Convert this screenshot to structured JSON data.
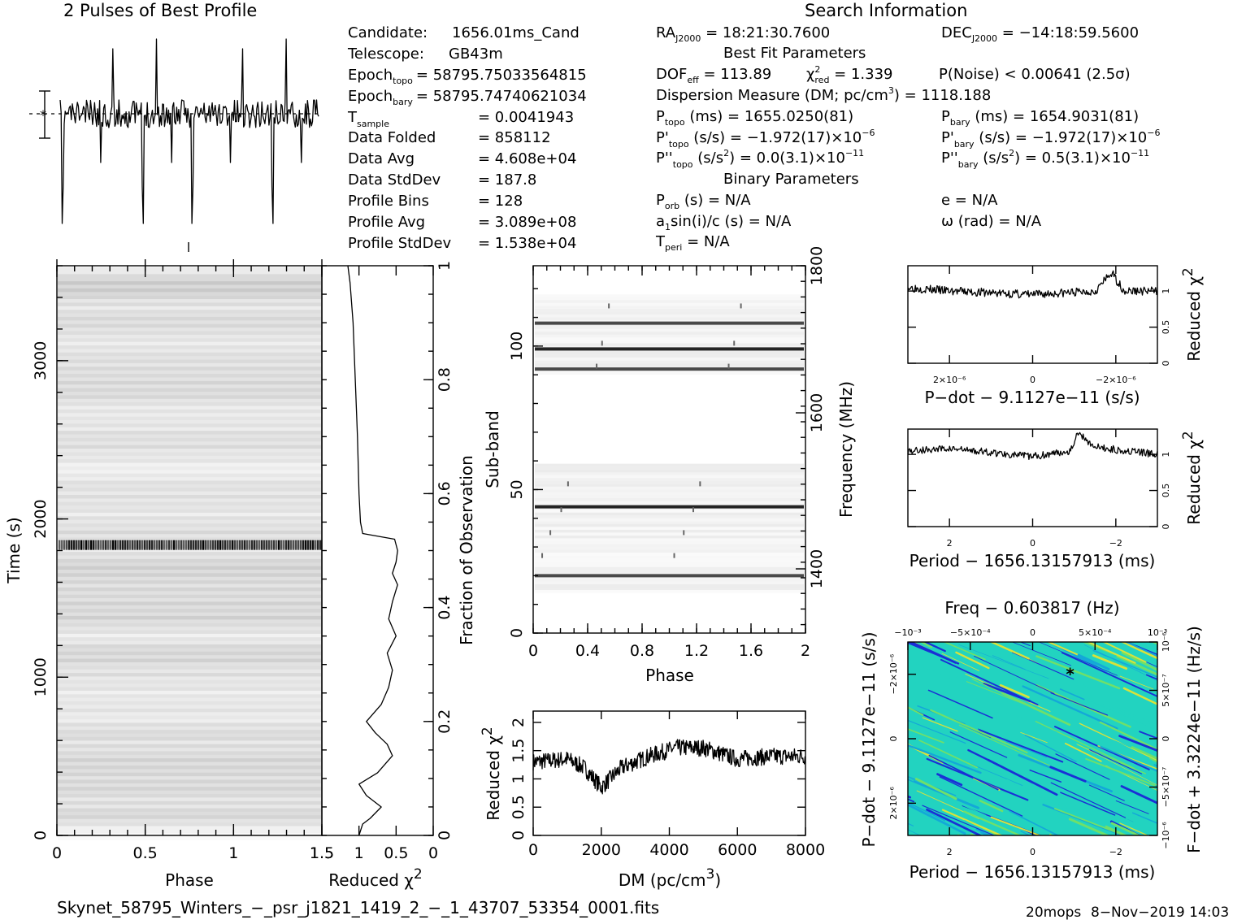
{
  "title_profile": "2 Pulses of Best Profile",
  "title_search": "Search Information",
  "header": {
    "candidate": {
      "label": "Candidate:",
      "value": "1656.01ms_Cand"
    },
    "telescope": {
      "label": "Telescope:",
      "value": "GB43m"
    },
    "epoch_topo": {
      "label": "Epoch",
      "sub": "topo",
      "value": "= 58795.75033564815"
    },
    "epoch_bary": {
      "label": "Epoch",
      "sub": "bary",
      "value": "= 58795.74740621034"
    },
    "tsample": {
      "label": "T",
      "sub": "sample",
      "value": "=   0.0041943"
    },
    "data_folded": {
      "label": "Data Folded",
      "value": "=   858112"
    },
    "data_avg": {
      "label": "Data Avg",
      "value": "=   4.608e+04"
    },
    "data_stddev": {
      "label": "Data StdDev",
      "value": "=   187.8"
    },
    "profile_bins": {
      "label": "Profile Bins",
      "value": "=   128"
    },
    "profile_avg": {
      "label": "Profile Avg",
      "value": "=   3.089e+08"
    },
    "profile_stddev": {
      "label": "Profile StdDev",
      "value": "=   1.538e+04"
    }
  },
  "search": {
    "ra": {
      "label": "RA",
      "sub": "J2000",
      "value": " = 18:21:30.7600"
    },
    "dec": {
      "label": "DEC",
      "sub": "J2000",
      "value": " = −14:18:59.5600"
    },
    "best_fit_title": "Best Fit Parameters",
    "dof": {
      "label": "DOF",
      "sub": "eff",
      "value": " = 113.89"
    },
    "chi2": {
      "sym": "χ",
      "sup": "2",
      "sub": "red",
      "value": " = 1.339"
    },
    "pnoise": "P(Noise) < 0.00641   (2.5σ)",
    "dm": {
      "text": "Dispersion Measure (DM; pc/cm",
      "sup": "3",
      "value": ") = 1118.188"
    },
    "ptopo": {
      "label": "P",
      "sub": "topo",
      "value": " (ms)  =   1655.0250(81)"
    },
    "pbary": {
      "label": "P",
      "sub": "bary",
      "value": " (ms)  =   1654.9031(81)"
    },
    "pdtopo": {
      "label": "P'",
      "sub": "topo",
      "value": " (s/s) = −1.972(17)×10",
      "exp": "−6"
    },
    "pdbary": {
      "label": "P'",
      "sub": "bary",
      "value": " (s/s) = −1.972(17)×10",
      "exp": "−6"
    },
    "pddtopo": {
      "label": "P''",
      "sub": "topo",
      "value": " (s/s",
      "sup": "2",
      "value2": ") = 0.0(3.1)×10",
      "exp": "−11"
    },
    "pddbary": {
      "label": "P''",
      "sub": "bary",
      "value": " (s/s",
      "sup": "2",
      "value2": ") =  0.5(3.1)×10",
      "exp": "−11"
    },
    "binary_title": "Binary Parameters",
    "porb": {
      "label": "P",
      "sub": "orb",
      "value": " (s) = N/A"
    },
    "ecc": "e = N/A",
    "asini": {
      "label": "a",
      "sub": "1",
      "value": "sin(i)/c (s) = N/A"
    },
    "omega": "ω (rad) = N/A",
    "tperi": {
      "label": "T",
      "sub": "peri",
      "value": " = N/A"
    }
  },
  "footer": {
    "filename": "Skynet_58795_Winters_−_psr_j1821_1419_2_−_1_43707_53354_0001.fits",
    "program": "20mops",
    "date": "8−Nov−2019 14:03"
  },
  "chart_data": [
    {
      "id": "profile",
      "type": "line",
      "title": "2 Pulses of Best Profile",
      "x_range": [
        0,
        2
      ],
      "seed": 11
    },
    {
      "id": "time_phase",
      "type": "heatmap",
      "xlabel": "Phase",
      "ylabel": "Time (s)",
      "xlim": [
        0,
        1.5
      ],
      "ylim": [
        0,
        3600
      ],
      "x_ticks": [
        "0",
        "0.5",
        "1",
        "1.5"
      ],
      "y_ticks": [
        "0",
        "1000",
        "2000",
        "3000"
      ],
      "dark_band_time": 1835,
      "colormap": "grayscale"
    },
    {
      "id": "time_chi2",
      "type": "line",
      "xlabel": "Reduced χ",
      "xlabel_sup": "2",
      "ylabel": "Fraction of Observation",
      "xlim": [
        1.5,
        0
      ],
      "ylim": [
        0,
        1
      ],
      "x_ticks": [
        "1.5",
        "1",
        "0.5",
        "0"
      ],
      "y_ticks": [
        "0",
        "0.2",
        "0.4",
        "0.6",
        "0.8",
        "1"
      ],
      "points": [
        [
          1.0,
          0.0
        ],
        [
          0.95,
          0.02
        ],
        [
          0.85,
          0.03
        ],
        [
          0.7,
          0.05
        ],
        [
          0.9,
          0.07
        ],
        [
          1.0,
          0.09
        ],
        [
          0.75,
          0.11
        ],
        [
          0.55,
          0.14
        ],
        [
          0.62,
          0.16
        ],
        [
          0.78,
          0.18
        ],
        [
          0.9,
          0.2
        ],
        [
          0.7,
          0.23
        ],
        [
          0.6,
          0.26
        ],
        [
          0.55,
          0.29
        ],
        [
          0.62,
          0.32
        ],
        [
          0.5,
          0.35
        ],
        [
          0.6,
          0.38
        ],
        [
          0.55,
          0.41
        ],
        [
          0.48,
          0.44
        ],
        [
          0.55,
          0.46
        ],
        [
          0.5,
          0.48
        ],
        [
          0.48,
          0.5
        ],
        [
          0.52,
          0.52
        ],
        [
          0.95,
          0.53
        ],
        [
          0.98,
          0.55
        ],
        [
          1.0,
          0.6
        ],
        [
          1.02,
          0.7
        ],
        [
          1.05,
          0.8
        ],
        [
          1.08,
          0.9
        ],
        [
          1.12,
          0.97
        ],
        [
          1.15,
          1.0
        ]
      ]
    },
    {
      "id": "subband_phase",
      "type": "heatmap",
      "xlabel": "Phase",
      "ylabel": "Sub-band",
      "ylabel_right": "Frequency (MHz)",
      "xlim": [
        0,
        2
      ],
      "ylim": [
        0,
        128
      ],
      "x_ticks": [
        "0",
        "0.4",
        "0.8",
        "1.2",
        "1.6",
        "2"
      ],
      "y_ticks": [
        "0",
        "50",
        "100"
      ],
      "freq_ticks": [
        "1400",
        "1600",
        "1800"
      ],
      "dark_bands": [
        20,
        44,
        92,
        99,
        108
      ],
      "colormap": "grayscale"
    },
    {
      "id": "dm_chi2",
      "type": "line",
      "xlabel": "DM (pc/cm",
      "xlabel_sup": "3",
      "xlabel_end": ")",
      "ylabel": "Reduced χ",
      "ylabel_sup": "2",
      "xlim": [
        0,
        8000
      ],
      "ylim": [
        0,
        2.2
      ],
      "x_ticks": [
        "0",
        "2000",
        "4000",
        "6000",
        "8000"
      ],
      "y_ticks": [
        "0",
        "0.5",
        "1",
        "1.5",
        "2"
      ],
      "trend": [
        [
          0,
          1.3
        ],
        [
          1000,
          1.35
        ],
        [
          1500,
          1.2
        ],
        [
          2000,
          0.85
        ],
        [
          2600,
          1.2
        ],
        [
          3400,
          1.4
        ],
        [
          4200,
          1.55
        ],
        [
          5000,
          1.55
        ],
        [
          6000,
          1.35
        ],
        [
          7000,
          1.4
        ],
        [
          8000,
          1.4
        ]
      ],
      "noise": 0.15,
      "seed": 7
    },
    {
      "id": "pdot_chi2",
      "type": "line",
      "xlabel": "P−dot − 9.1127e−11 (s/s)",
      "ylabel": "Reduced χ",
      "ylabel_sup": "2",
      "xlim": [
        3.0,
        -3.0
      ],
      "ylim": [
        0,
        1.35
      ],
      "x_ticks": [
        "2×10⁻⁶",
        "0",
        "−2×10⁻⁶"
      ],
      "y_ticks": [
        "0",
        "0.5",
        "1"
      ],
      "trend": [
        [
          3,
          1.05
        ],
        [
          2,
          1.0
        ],
        [
          0,
          0.95
        ],
        [
          -1.5,
          1.0
        ],
        [
          -1.9,
          1.25
        ],
        [
          -2.2,
          1.0
        ],
        [
          -3,
          1.0
        ]
      ],
      "noise": 0.06,
      "seed": 3
    },
    {
      "id": "period_chi2",
      "type": "line",
      "xlabel": "Period − 1656.13157913 (ms)",
      "ylabel": "Reduced χ",
      "ylabel_sup": "2",
      "xlim": [
        3.0,
        -3.0
      ],
      "ylim": [
        0,
        1.35
      ],
      "x_ticks": [
        "2",
        "0",
        "−2"
      ],
      "y_ticks": [
        "0",
        "0.5",
        "1"
      ],
      "trend": [
        [
          3,
          1.05
        ],
        [
          2,
          1.08
        ],
        [
          0,
          0.97
        ],
        [
          -0.9,
          1.05
        ],
        [
          -1.1,
          1.3
        ],
        [
          -1.5,
          1.1
        ],
        [
          -3,
          1.0
        ]
      ],
      "noise": 0.05,
      "seed": 5
    },
    {
      "id": "ppdot_plane",
      "type": "heatmap",
      "title": "Freq − 0.603817 (Hz)",
      "xlabel": "Period − 1656.13157913 (ms)",
      "ylabel": "P−dot − 9.1127e−11 (s/s)",
      "ylabel_right": "F−dot + 3.3224e−11 (Hz/s)",
      "x_ticks": [
        "2",
        "0",
        "−2"
      ],
      "top_ticks": [
        "−10⁻³",
        "−5×10⁻⁴",
        "0",
        "5×10⁻⁴",
        "10⁻³"
      ],
      "y_ticks": [
        "−2×10⁻⁶",
        "0",
        "2×10⁻⁶"
      ],
      "right_ticks": [
        "10⁻⁶",
        "5×10⁻⁷",
        "0",
        "−5×10⁻⁷",
        "−10⁻⁶"
      ],
      "best": [
        -0.9,
        -2.0
      ],
      "colors": [
        "#1a2fd6",
        "#14a8d8",
        "#22d3c0",
        "#6fe06a",
        "#d8e23a"
      ]
    }
  ]
}
